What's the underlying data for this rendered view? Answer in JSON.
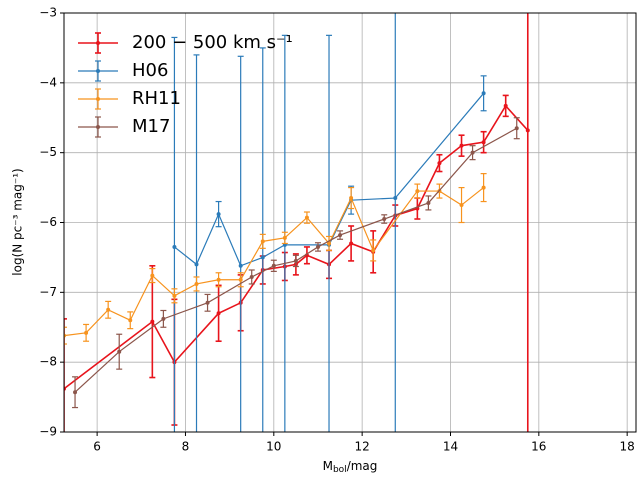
{
  "chart_data": {
    "type": "errorbar-line",
    "x_label": {
      "main": "M",
      "sub": "bol",
      "rest": "/mag"
    },
    "y_label": "log(N pc⁻³ mag⁻¹)",
    "xlim": [
      5.25,
      18.2
    ],
    "ylim": [
      -9,
      -3
    ],
    "xticks": [
      6,
      8,
      10,
      12,
      14,
      16,
      18
    ],
    "yticks": [
      {
        "value": -9,
        "label": "−9"
      },
      {
        "value": -8,
        "label": "−8"
      },
      {
        "value": -7,
        "label": "−7"
      },
      {
        "value": -6,
        "label": "−6"
      },
      {
        "value": -5,
        "label": "−5"
      },
      {
        "value": -4,
        "label": "−4"
      },
      {
        "value": -3,
        "label": "−3"
      }
    ],
    "grid": true,
    "legend": "upper left",
    "series": [
      {
        "name": "200 − 500 km s⁻¹",
        "color": "#e8141c",
        "x": [
          5.25,
          7.25,
          7.75,
          8.75,
          9.25,
          9.75,
          10.25,
          10.5,
          10.75,
          11.25,
          11.75,
          12.25,
          12.75,
          13.25,
          13.75,
          14.25,
          14.75,
          15.25,
          15.75
        ],
        "values": [
          -8.38,
          -7.42,
          -8.0,
          -7.3,
          -7.15,
          -6.68,
          -6.63,
          -6.6,
          -6.47,
          -6.6,
          -6.3,
          -6.42,
          -5.9,
          -5.8,
          -5.15,
          -4.9,
          -4.85,
          -4.33,
          -4.68
        ],
        "errors": [
          1.0,
          0.8,
          0.9,
          0.4,
          0.4,
          0.2,
          0.2,
          0.15,
          0.12,
          0.2,
          0.25,
          0.3,
          0.15,
          0.15,
          0.12,
          0.15,
          0.15,
          0.15,
          4.5
        ]
      },
      {
        "name": "H06",
        "color": "#2b7bb9",
        "x": [
          7.75,
          8.25,
          8.75,
          9.25,
          9.75,
          10.25,
          11.25,
          11.75,
          12.75,
          14.75
        ],
        "values": [
          -6.35,
          -6.6,
          -5.88,
          -6.62,
          -6.5,
          -6.32,
          -6.32,
          -5.68,
          -5.65,
          -4.15
        ],
        "errors": [
          3,
          3,
          0.18,
          3,
          3,
          3,
          3,
          0.2,
          3.5,
          0.25
        ]
      },
      {
        "name": "RH11",
        "color": "#f7931e",
        "x": [
          5.25,
          5.75,
          6.25,
          6.75,
          7.25,
          7.75,
          8.25,
          8.75,
          9.25,
          9.75,
          10.25,
          10.75,
          11.25,
          11.75,
          12.25,
          13.25,
          13.75,
          14.25,
          14.75
        ],
        "values": [
          -7.62,
          -7.58,
          -7.25,
          -7.4,
          -6.76,
          -7.05,
          -6.88,
          -6.82,
          -6.82,
          -6.27,
          -6.22,
          -5.93,
          -6.3,
          -5.65,
          -6.4,
          -5.55,
          -5.55,
          -5.75,
          -5.5
        ],
        "errors": [
          0.12,
          0.12,
          0.12,
          0.12,
          0.1,
          0.1,
          0.1,
          0.1,
          0.1,
          0.1,
          0.08,
          0.08,
          0.1,
          0.15,
          0.15,
          0.1,
          0.1,
          0.25,
          0.2
        ]
      },
      {
        "name": "M17",
        "color": "#8c564b",
        "x": [
          5.5,
          6.5,
          7.5,
          8.5,
          9.5,
          10.0,
          10.5,
          11.0,
          11.5,
          12.5,
          13.5,
          14.5,
          15.5
        ],
        "values": [
          -8.43,
          -7.85,
          -7.38,
          -7.15,
          -6.78,
          -6.62,
          -6.55,
          -6.35,
          -6.18,
          -5.95,
          -5.72,
          -5.0,
          -4.65
        ],
        "errors": [
          0.22,
          0.25,
          0.12,
          0.12,
          0.1,
          0.08,
          0.08,
          0.06,
          0.06,
          0.06,
          0.1,
          0.1,
          0.15
        ]
      }
    ]
  }
}
